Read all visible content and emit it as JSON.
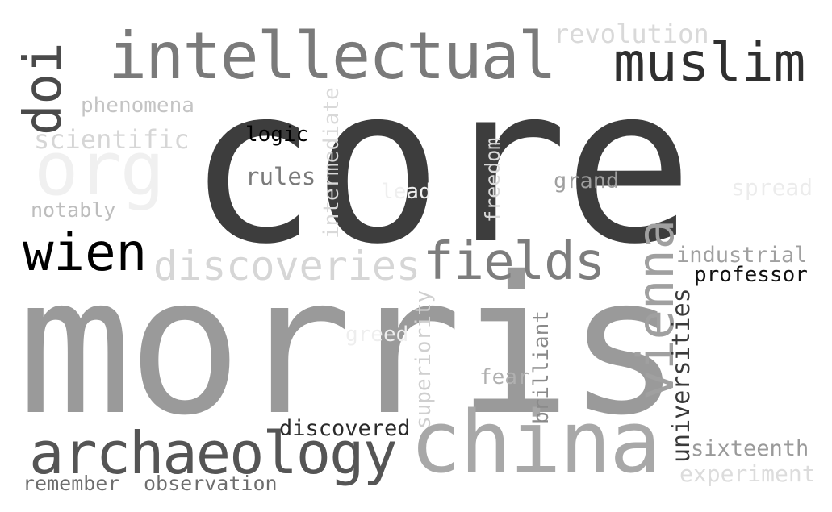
{
  "words": {
    "core": "core",
    "morris": "morris",
    "china": "china",
    "intellectual": "intellectual",
    "muslim": "muslim",
    "doi": "doi",
    "org": "org",
    "archaeology": "archaeology",
    "discoveries": "discoveries",
    "fields": "fields",
    "wien": "wien",
    "vienna": "vienna",
    "revolution": "revolution",
    "phenomena": "phenomena",
    "scientific": "scientific",
    "notably": "notably",
    "logic": "logic",
    "rules": "rules",
    "intermediate": "intermediate",
    "lead": "lead",
    "freedom": "freedom",
    "grand": "grand",
    "spread": "spread",
    "industrial": "industrial",
    "professor": "professor",
    "universities": "universities",
    "superiority": "superiority",
    "greed": "greed",
    "brilliant": "brilliant",
    "fear": "fear",
    "discovered": "discovered",
    "sixteenth": "sixteenth",
    "experiment": "experiment",
    "remember": "remember",
    "observation": "observation"
  },
  "colors": {
    "background": "#ffffff",
    "darkest": "#000000",
    "dark": "#3d3d3d",
    "mid_dark": "#555555",
    "mid": "#7a7a7a",
    "mid_light": "#999999",
    "light": "#bdbdbd",
    "faint": "#d9d9d9",
    "faintest": "#efefef"
  }
}
